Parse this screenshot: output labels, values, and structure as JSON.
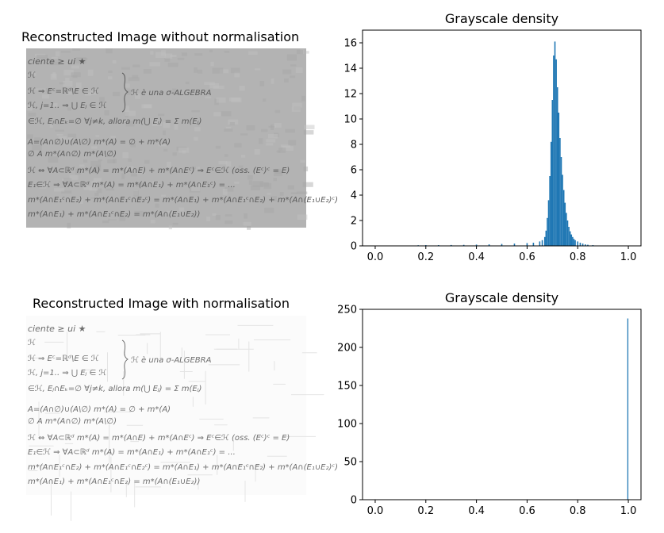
{
  "panels": {
    "top_left": {
      "title": "Reconstructed Image without normalisation",
      "background": "#b3b3b3",
      "ink": "#5a5a5a"
    },
    "bottom_left": {
      "title": "Reconstructed Image with normalisation",
      "background": "#fbfbfb",
      "ink": "#6e6e6e"
    }
  },
  "handwriting_lines": [
    "ciente ≥ ui ★",
    "ℋ",
    "ℋ ⇒ Eᶜ=ℝᵈ\\E ∈ ℋ",
    "ℋ, j=1.. ⇒ ⋃ Eⱼ ∈ ℋ",
    "∈ℋ, Eⱼ∩Eₖ=∅ ∀j≠k, allora m(⋃ Eⱼ) = Σ m(Eⱼ)",
    "A=(A∩∅)∪(A\\∅)      m*(A) = ∅ + m*(A)",
    "∅        A          m*(A∩∅)   m*(A\\∅)",
    "ℋ ⇔ ∀A⊂ℝᵈ  m*(A) = m*(A∩E) + m*(A∩Eᶜ) ⇒ Eᶜ∈ℋ   (oss. (Eᶜ)ᶜ = E)",
    "E₁∈ℋ ⇒ ∀A⊂ℝᵈ  m*(A) = m*(A∩E₁) + m*(A∩E₁ᶜ) = ...",
    "m*(A∩E₁ᶜ∩E₂) + m*(A∩E₁ᶜ∩E₂ᶜ) = m*(A∩E₁) + m*(A∩E₁ᶜ∩E₂) + m*(A∩(E₁∪E₂)ᶜ)",
    "m*(A∩E₁) + m*(A∩E₁ᶜ∩E₂) = m*(A∩(E₁∪E₂))"
  ],
  "annotation": "ℋ è una σ-ALGEBRA",
  "chart_data": [
    {
      "type": "bar",
      "title": "Grayscale density",
      "xlabel": "",
      "ylabel": "",
      "xlim": [
        -0.05,
        1.05
      ],
      "ylim": [
        0,
        17
      ],
      "xticks": [
        "0.0",
        "0.2",
        "0.4",
        "0.6",
        "0.8",
        "1.0"
      ],
      "yticks": [
        "0",
        "2",
        "4",
        "6",
        "8",
        "10",
        "12",
        "14",
        "16"
      ],
      "color": "#1f77b4",
      "grid": false,
      "bins": [
        {
          "x": 0.17,
          "y": 0.05
        },
        {
          "x": 0.2,
          "y": 0.06
        },
        {
          "x": 0.25,
          "y": 0.06
        },
        {
          "x": 0.3,
          "y": 0.07
        },
        {
          "x": 0.35,
          "y": 0.08
        },
        {
          "x": 0.4,
          "y": 0.1
        },
        {
          "x": 0.45,
          "y": 0.12
        },
        {
          "x": 0.5,
          "y": 0.15
        },
        {
          "x": 0.55,
          "y": 0.18
        },
        {
          "x": 0.6,
          "y": 0.22
        },
        {
          "x": 0.625,
          "y": 0.25
        },
        {
          "x": 0.65,
          "y": 0.35
        },
        {
          "x": 0.66,
          "y": 0.45
        },
        {
          "x": 0.67,
          "y": 0.7
        },
        {
          "x": 0.675,
          "y": 1.2
        },
        {
          "x": 0.68,
          "y": 2.2
        },
        {
          "x": 0.685,
          "y": 3.6
        },
        {
          "x": 0.69,
          "y": 5.5
        },
        {
          "x": 0.695,
          "y": 8.2
        },
        {
          "x": 0.7,
          "y": 11.5
        },
        {
          "x": 0.705,
          "y": 15.0
        },
        {
          "x": 0.71,
          "y": 16.1
        },
        {
          "x": 0.715,
          "y": 14.7
        },
        {
          "x": 0.72,
          "y": 12.5
        },
        {
          "x": 0.725,
          "y": 10.5
        },
        {
          "x": 0.73,
          "y": 8.5
        },
        {
          "x": 0.735,
          "y": 7.0
        },
        {
          "x": 0.74,
          "y": 5.6
        },
        {
          "x": 0.745,
          "y": 4.4
        },
        {
          "x": 0.75,
          "y": 3.4
        },
        {
          "x": 0.755,
          "y": 2.6
        },
        {
          "x": 0.76,
          "y": 2.0
        },
        {
          "x": 0.765,
          "y": 1.5
        },
        {
          "x": 0.77,
          "y": 1.15
        },
        {
          "x": 0.775,
          "y": 0.9
        },
        {
          "x": 0.78,
          "y": 0.7
        },
        {
          "x": 0.785,
          "y": 0.55
        },
        {
          "x": 0.79,
          "y": 0.45
        },
        {
          "x": 0.8,
          "y": 0.35
        },
        {
          "x": 0.81,
          "y": 0.25
        },
        {
          "x": 0.82,
          "y": 0.18
        },
        {
          "x": 0.83,
          "y": 0.12
        },
        {
          "x": 0.84,
          "y": 0.09
        },
        {
          "x": 0.86,
          "y": 0.06
        },
        {
          "x": 0.88,
          "y": 0.03
        }
      ],
      "bin_width": 0.005
    },
    {
      "type": "bar",
      "title": "Grayscale density",
      "xlabel": "",
      "ylabel": "",
      "xlim": [
        -0.05,
        1.05
      ],
      "ylim": [
        0,
        250
      ],
      "xticks": [
        "0.0",
        "0.2",
        "0.4",
        "0.6",
        "0.8",
        "1.0"
      ],
      "yticks": [
        "0",
        "50",
        "100",
        "150",
        "200",
        "250"
      ],
      "color": "#1f77b4",
      "grid": false,
      "bins": [
        {
          "x": 0.998,
          "y": 238
        }
      ],
      "bin_width": 0.004
    }
  ]
}
